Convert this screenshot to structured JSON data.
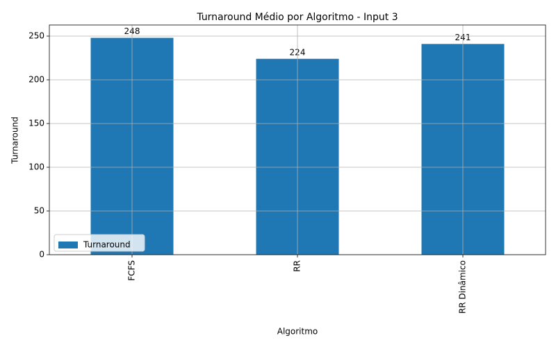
{
  "chart_data": {
    "type": "bar",
    "title": "Turnaround Médio por Algoritmo - Input 3",
    "x_label": "Algoritmo",
    "y_label": "Turnaround",
    "categories": [
      "FCFS",
      "RR",
      "RR Dinâmico"
    ],
    "series": [
      {
        "name": "Turnaround",
        "color": "#1f77b4",
        "values": [
          248,
          224,
          241
        ]
      }
    ],
    "ylim": [
      0,
      262.7
    ],
    "yticks": [
      0,
      50,
      100,
      150,
      200,
      250
    ],
    "grid": true,
    "legend": "lower left"
  }
}
